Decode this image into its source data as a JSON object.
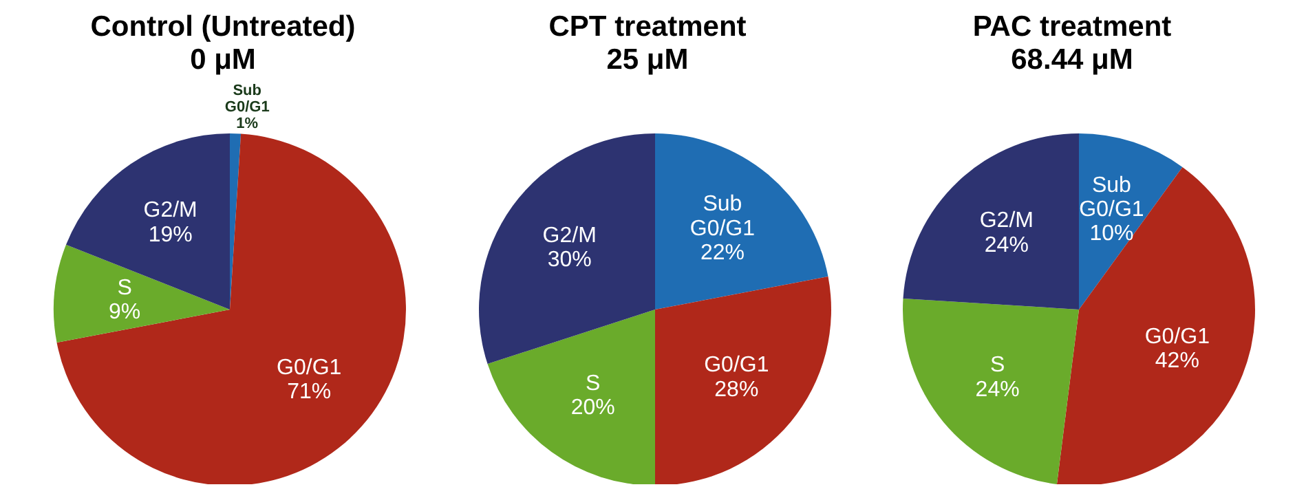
{
  "chart_data": [
    {
      "type": "pie",
      "title": "Control (Untreated)",
      "subtitle": "0 μM",
      "categories": [
        "Sub G0/G1",
        "G0/G1",
        "S",
        "G2/M"
      ],
      "values": [
        1,
        71,
        9,
        19
      ],
      "value_labels": [
        "1%",
        "71%",
        "9%",
        "19%"
      ],
      "colors": [
        "#1f6db3",
        "#b0281a",
        "#6aab2b",
        "#2d3371"
      ],
      "legend": false
    },
    {
      "type": "pie",
      "title": "CPT treatment",
      "subtitle": "25 μM",
      "categories": [
        "Sub G0/G1",
        "G0/G1",
        "S",
        "G2/M"
      ],
      "values": [
        22,
        28,
        20,
        30
      ],
      "value_labels": [
        "22%",
        "28%",
        "20%",
        "30%"
      ],
      "colors": [
        "#1f6db3",
        "#b0281a",
        "#6aab2b",
        "#2d3371"
      ],
      "legend": false
    },
    {
      "type": "pie",
      "title": "PAC treatment",
      "subtitle": "68.44 μM",
      "categories": [
        "Sub G0/G1",
        "G0/G1",
        "S",
        "G2/M"
      ],
      "values": [
        10,
        42,
        24,
        24
      ],
      "value_labels": [
        "10%",
        "42%",
        "24%",
        "24%"
      ],
      "colors": [
        "#1f6db3",
        "#b0281a",
        "#6aab2b",
        "#2d3371"
      ],
      "legend": false
    }
  ]
}
